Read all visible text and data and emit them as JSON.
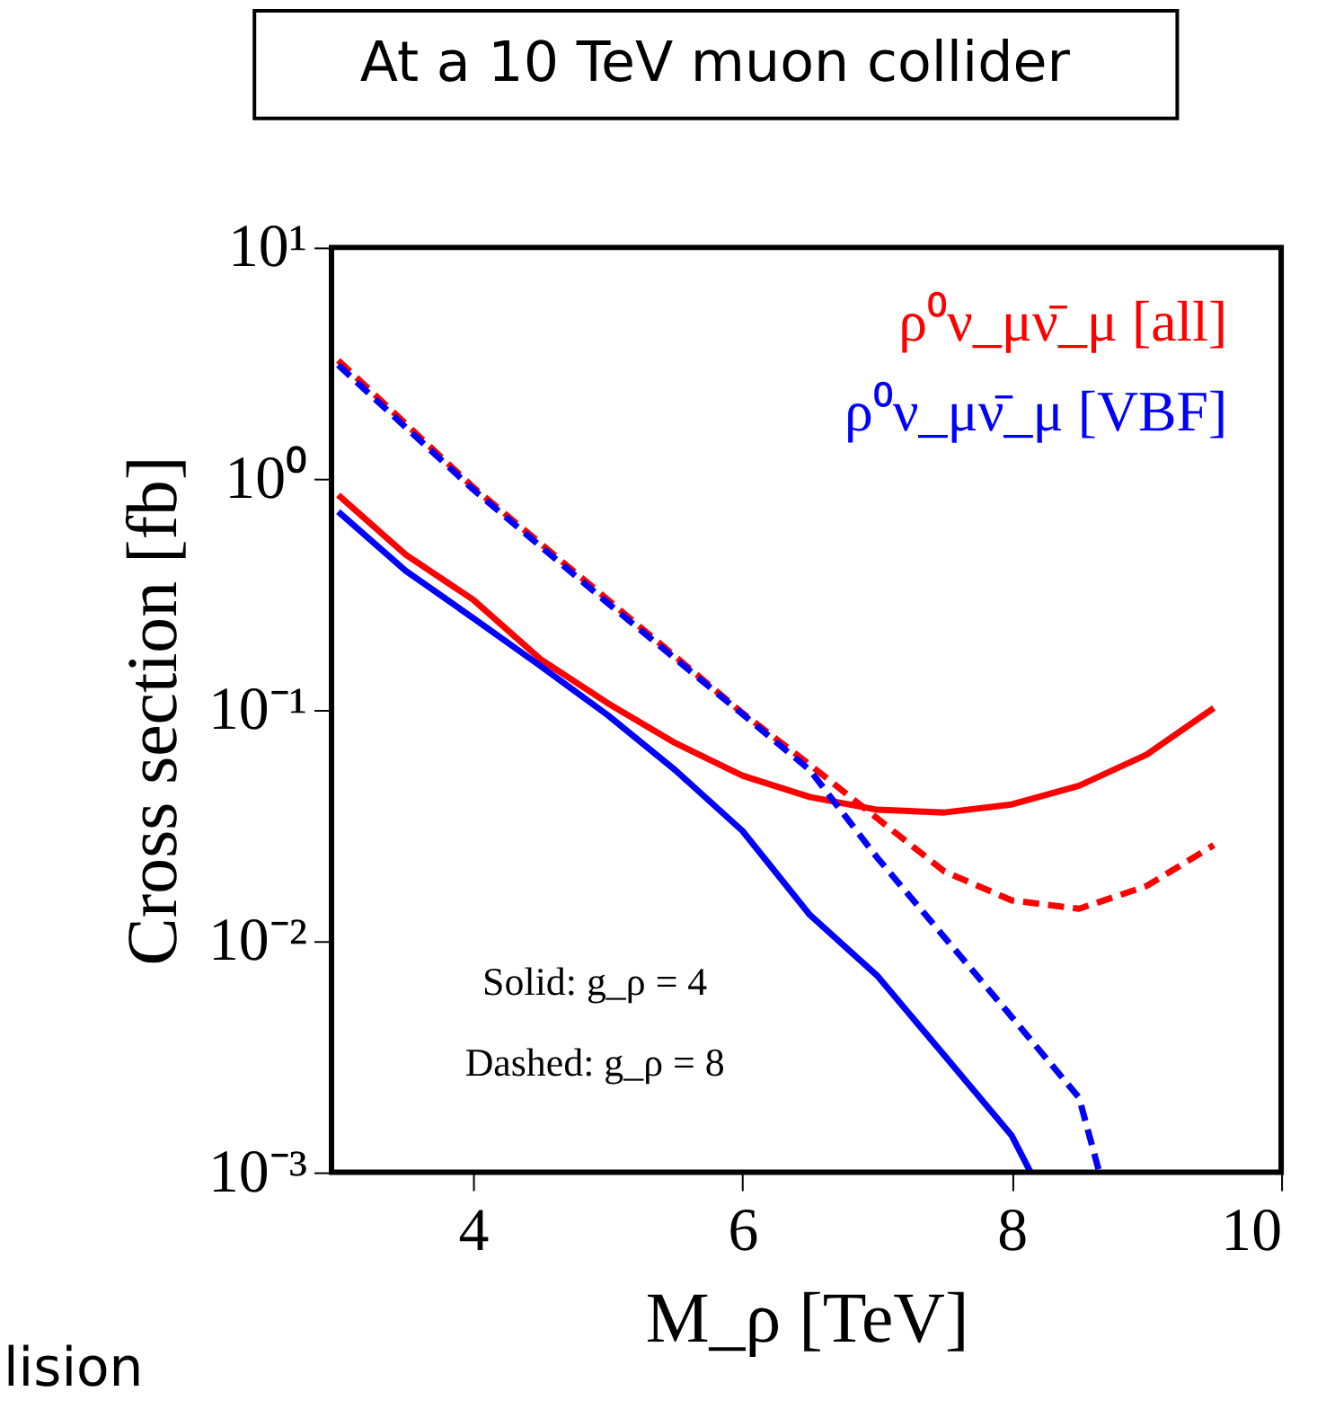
{
  "chart_data": {
    "type": "line",
    "title": "At a 10 TeV muon collider",
    "xlabel": "M_ρ [TeV]",
    "ylabel": "Cross section [fb]",
    "log": "y",
    "grid": false,
    "legend": "top right",
    "marker": "none",
    "xlim": [
      2.95,
      10
    ],
    "xticks": [
      4,
      6,
      8,
      10
    ],
    "ylim": [
      0.001,
      10
    ],
    "yticks": [
      {
        "value": 10,
        "label": "10¹"
      },
      {
        "value": 1,
        "label": "10⁰"
      },
      {
        "value": 0.1,
        "label": "10⁻¹"
      },
      {
        "value": 0.01,
        "label": "10⁻²"
      },
      {
        "value": 0.001,
        "label": "10⁻³"
      }
    ],
    "series": [
      {
        "name": "ρ⁰ν_μν̄_μ [all]",
        "color": "#ff0000",
        "line_style": "solid",
        "x": [
          3,
          3.5,
          4,
          4.5,
          5,
          5.5,
          6,
          6.5,
          7,
          7.5,
          8,
          8.5,
          9,
          9.5
        ],
        "values": [
          0.85,
          0.47,
          0.3,
          0.166,
          0.107,
          0.072,
          0.052,
          0.042,
          0.037,
          0.036,
          0.039,
          0.047,
          0.064,
          0.102
        ]
      },
      {
        "name": "ρ⁰ν_μν̄_μ [VBF]",
        "color": "#0000ff",
        "line_style": "solid",
        "x": [
          3,
          3.5,
          4,
          4.5,
          5,
          5.5,
          6,
          6.5,
          7,
          7.5,
          8,
          8.14
        ],
        "values": [
          0.72,
          0.4,
          0.25,
          0.155,
          0.095,
          0.055,
          0.03,
          0.013,
          0.0071,
          0.0032,
          0.00144,
          0.001
        ]
      },
      {
        "color": "#ff0000",
        "line_style": "dashed",
        "x": [
          3,
          4,
          5,
          6,
          6.5,
          7,
          7.5,
          8,
          8.5,
          9,
          9.5
        ],
        "values": [
          3.25,
          0.92,
          0.3,
          0.097,
          0.058,
          0.034,
          0.02,
          0.015,
          0.0138,
          0.0173,
          0.026
        ]
      },
      {
        "color": "#0000ff",
        "line_style": "dashed",
        "x": [
          3,
          4,
          5,
          6,
          6.5,
          7,
          7.5,
          8,
          8.5,
          8.65
        ],
        "values": [
          3.1,
          0.9,
          0.29,
          0.096,
          0.055,
          0.023,
          0.0104,
          0.0047,
          0.0021,
          0.001
        ]
      }
    ],
    "annotations": [
      "Solid: g_ρ = 4",
      "Dashed: g_ρ = 8",
      "lision"
    ]
  }
}
